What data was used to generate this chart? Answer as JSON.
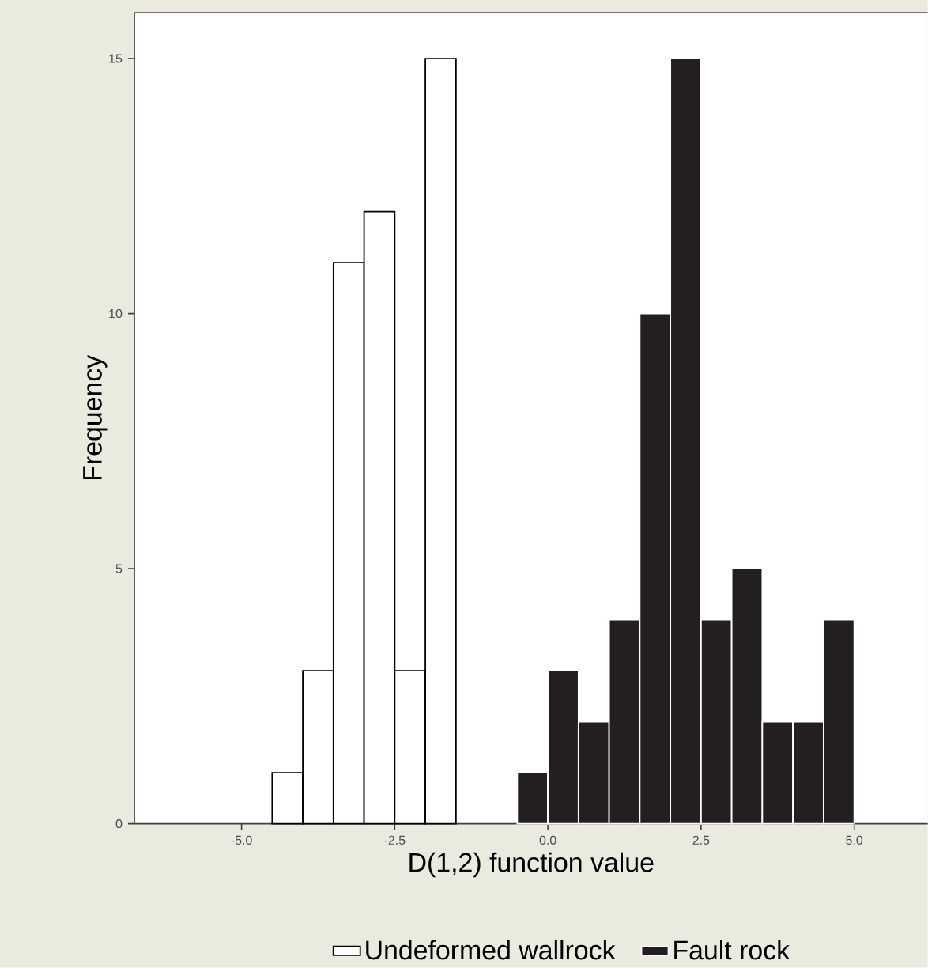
{
  "chart_data": {
    "type": "histogram",
    "xlabel": "D(1,2) function value",
    "ylabel": "Frequency",
    "bins": [
      -4.5,
      -4.0,
      -3.5,
      -3.0,
      -2.5,
      -2.0,
      -1.5,
      -1.0,
      -0.5,
      0.0,
      0.5,
      1.0,
      1.5,
      2.0,
      2.5,
      3.0,
      3.5,
      4.0,
      4.5,
      5.0
    ],
    "series": [
      {
        "name": "Undeformed wallrock",
        "color": "#ffffff",
        "values": [
          1,
          3,
          11,
          12,
          3,
          15,
          null,
          null,
          null,
          null,
          null,
          null,
          null,
          null,
          null,
          null,
          null,
          null,
          null
        ]
      },
      {
        "name": "Fault rock",
        "color": "#231f20",
        "values": [
          null,
          null,
          null,
          null,
          null,
          null,
          null,
          null,
          1,
          3,
          2,
          4,
          10,
          15,
          4,
          5,
          2,
          2,
          4
        ]
      }
    ],
    "xlim": [
      -6.75,
      6.2
    ],
    "ylim": [
      0,
      15.9
    ],
    "xticks": [
      {
        "value": -5,
        "label": "-5.0"
      },
      {
        "value": -2.5,
        "label": "-2.5"
      },
      {
        "value": 0,
        "label": "0.0"
      },
      {
        "value": 2.5,
        "label": "2.5"
      },
      {
        "value": 5,
        "label": "5.0"
      }
    ],
    "yticks": [
      0,
      5,
      10,
      15
    ],
    "legend": "bottom",
    "grid": false
  }
}
